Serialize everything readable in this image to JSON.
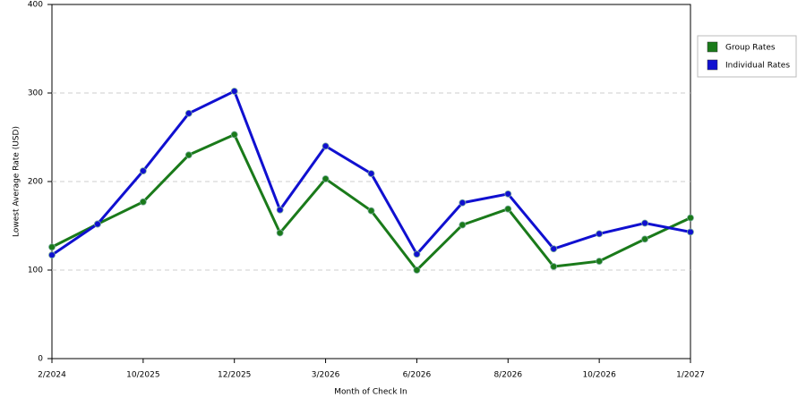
{
  "chart_data": {
    "type": "line",
    "y_label": "Lowest Average Rate (USD)",
    "x_label": "Month of Check In",
    "categories": [
      "2/2024",
      null,
      "10/2025",
      null,
      "12/2025",
      null,
      "3/2026",
      null,
      "6/2026",
      null,
      "8/2026",
      null,
      "10/2026",
      null,
      "1/2027"
    ],
    "series": [
      {
        "name": "Group Rates",
        "color": "#1a7a1a",
        "values": [
          126,
          152,
          177,
          230,
          253,
          142,
          203,
          167,
          100,
          151,
          169,
          104,
          110,
          135,
          159
        ]
      },
      {
        "name": "Individual Rates",
        "color": "#1010d0",
        "values": [
          117,
          152,
          212,
          277,
          302,
          168,
          240,
          209,
          118,
          176,
          186,
          124,
          141,
          153,
          143
        ]
      }
    ],
    "ylim": [
      0,
      400
    ],
    "yticks": [
      0,
      100,
      200,
      300,
      400
    ],
    "grid": true
  }
}
